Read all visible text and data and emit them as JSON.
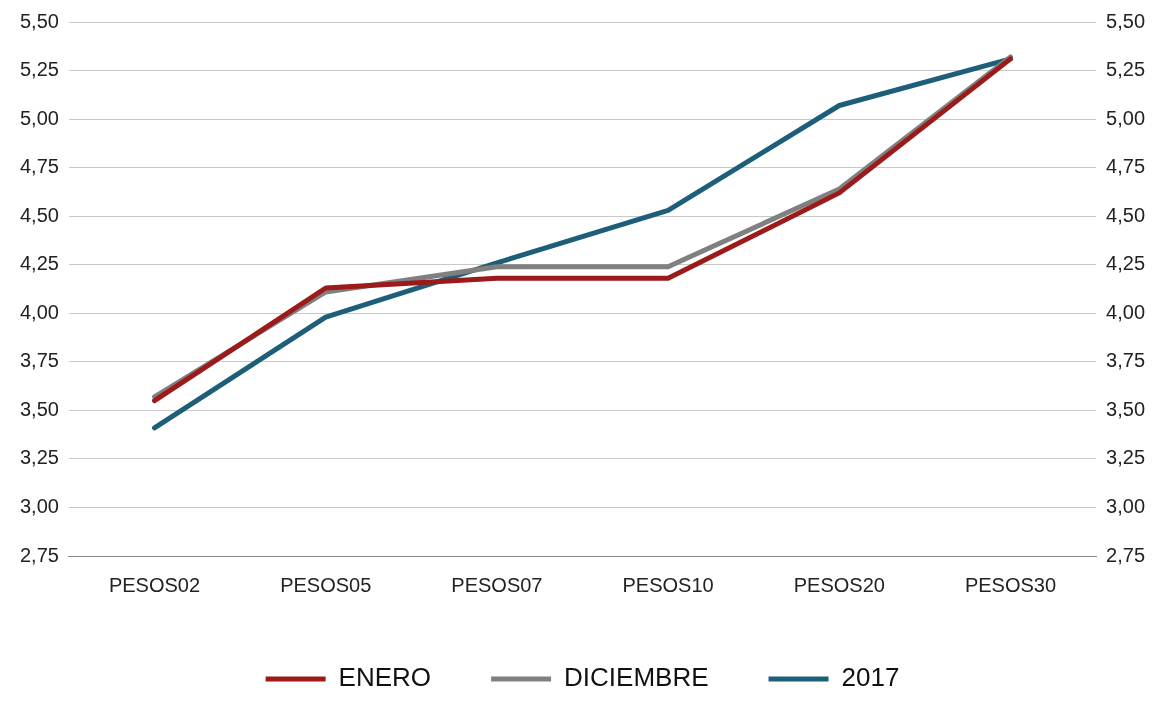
{
  "chart_data": {
    "type": "line",
    "categories": [
      "PESOS02",
      "PESOS05",
      "PESOS07",
      "PESOS10",
      "PESOS20",
      "PESOS30"
    ],
    "series": [
      {
        "name": "ENERO",
        "color": "#9b1b1b",
        "values": [
          3.55,
          4.13,
          4.18,
          4.18,
          4.62,
          5.31
        ]
      },
      {
        "name": "DICIEMBRE",
        "color": "#808080",
        "values": [
          3.57,
          4.11,
          4.24,
          4.24,
          4.64,
          5.32
        ]
      },
      {
        "name": "2017",
        "color": "#1d5f78",
        "values": [
          3.41,
          3.98,
          4.26,
          4.53,
          5.07,
          5.31
        ]
      }
    ],
    "ylim": [
      2.75,
      5.5
    ],
    "yticks": [
      {
        "value": 2.75,
        "label": "2,75"
      },
      {
        "value": 3,
        "label": "3,00"
      },
      {
        "value": 3.25,
        "label": "3,25"
      },
      {
        "value": 3.5,
        "label": "3,50"
      },
      {
        "value": 3.75,
        "label": "3,75"
      },
      {
        "value": 4,
        "label": "4,00"
      },
      {
        "value": 4.25,
        "label": "4,25"
      },
      {
        "value": 4.5,
        "label": "4,50"
      },
      {
        "value": 4.75,
        "label": "4,75"
      },
      {
        "value": 5,
        "label": "5,00"
      },
      {
        "value": 5.25,
        "label": "5,25"
      },
      {
        "value": 5.5,
        "label": "5,50"
      }
    ],
    "y2lim": [
      2.75,
      5.5
    ],
    "y2ticks": [
      {
        "value": 2.75,
        "label": "2,75"
      },
      {
        "value": 3,
        "label": "3,00"
      },
      {
        "value": 3.25,
        "label": "3,25"
      },
      {
        "value": 3.5,
        "label": "3,50"
      },
      {
        "value": 3.75,
        "label": "3,75"
      },
      {
        "value": 4,
        "label": "4,00"
      },
      {
        "value": 4.25,
        "label": "4,25"
      },
      {
        "value": 4.5,
        "label": "4,50"
      },
      {
        "value": 4.75,
        "label": "4,75"
      },
      {
        "value": 5,
        "label": "5,00"
      },
      {
        "value": 5.25,
        "label": "5,25"
      },
      {
        "value": 5.5,
        "label": "5,50"
      }
    ],
    "grid": "y",
    "legend": "bottom",
    "marker": "none",
    "line_style": "solid"
  }
}
